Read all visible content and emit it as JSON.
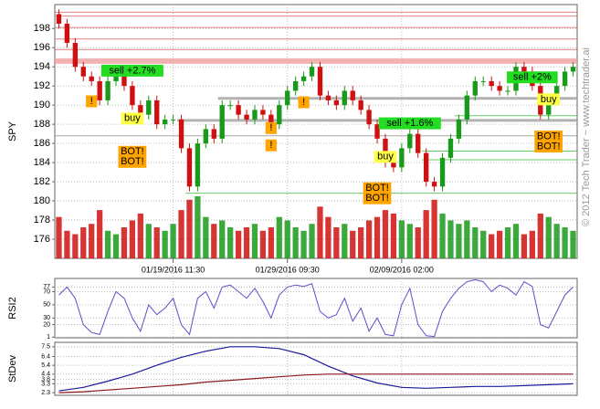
{
  "chart_data": [
    {
      "type": "candlestick",
      "ylabel": "SPY",
      "categories": [
        null,
        null,
        null,
        null,
        null,
        null,
        null,
        null,
        null,
        null,
        null,
        null,
        null,
        null,
        "01/19/2016 11:30",
        null,
        null,
        null,
        null,
        null,
        null,
        null,
        null,
        null,
        null,
        null,
        null,
        null,
        "01/29/2016 09:30",
        null,
        null,
        null,
        null,
        null,
        null,
        null,
        null,
        null,
        null,
        null,
        null,
        null,
        "02/09/2016 02:00",
        null,
        null,
        null,
        null,
        null,
        null,
        null,
        null,
        null,
        null,
        null,
        null,
        null,
        null,
        null,
        null,
        null,
        null,
        null,
        null,
        null
      ],
      "open": [
        199.5,
        198.5,
        196.5,
        194,
        193,
        192.5,
        190.5,
        192.5,
        193.5,
        192,
        190,
        189,
        190.5,
        188,
        188.5,
        188.5,
        185.5,
        181.5,
        186,
        187.5,
        186.5,
        190,
        190,
        189,
        188.5,
        189.5,
        189,
        188,
        190,
        191.5,
        192.5,
        193,
        194,
        191,
        190.5,
        190,
        191.5,
        190.5,
        189.5,
        188,
        186.5,
        184,
        183.5,
        185.5,
        187,
        185,
        182,
        181.5,
        184.5,
        186.5,
        188.5,
        191,
        192.5,
        192.5,
        192,
        191.5,
        191.5,
        194,
        193.5,
        192,
        189,
        190.5,
        192,
        193.5
      ],
      "high": [
        200,
        199,
        197,
        194.5,
        193.5,
        193,
        193,
        194,
        194,
        192.5,
        190.5,
        191,
        191,
        189,
        189,
        189,
        186,
        186.5,
        188,
        188,
        190.5,
        190.5,
        190.5,
        189.5,
        190,
        190,
        189.5,
        190.5,
        192,
        193,
        193.5,
        194.5,
        194.5,
        191.5,
        191,
        192,
        192,
        191,
        190,
        188.5,
        187,
        184.5,
        186,
        187.5,
        187.5,
        185.5,
        182.5,
        185,
        187,
        189,
        191.5,
        193,
        193,
        193,
        192.5,
        192,
        194.5,
        194.5,
        194,
        192.5,
        191,
        192.5,
        194,
        194.5
      ],
      "low": [
        198,
        196,
        193.5,
        192.5,
        192,
        190,
        190,
        192,
        191.5,
        189.5,
        188.5,
        188.5,
        187.5,
        187.5,
        188,
        185,
        181,
        181,
        185.5,
        186,
        186,
        189.5,
        188.5,
        188,
        188,
        188.5,
        187.5,
        187.5,
        189.5,
        191,
        192,
        192.5,
        190.5,
        190,
        189.5,
        189.5,
        190,
        189,
        187.5,
        186,
        183.5,
        183,
        183,
        185,
        184.5,
        181.5,
        181,
        181,
        184,
        186,
        188,
        190.5,
        192,
        191.5,
        191,
        191,
        191,
        193,
        191.5,
        188.5,
        188.5,
        190,
        191.5,
        193
      ],
      "close": [
        198.5,
        196.5,
        194,
        193,
        192.5,
        190.5,
        192.5,
        193.5,
        192,
        190,
        189,
        190.5,
        188,
        188.5,
        188.5,
        185.5,
        181.5,
        186,
        187.5,
        186.5,
        190,
        190,
        189,
        188.5,
        189.5,
        189,
        188,
        190,
        191.5,
        192.5,
        193,
        194,
        191,
        190.5,
        190,
        191.5,
        190.5,
        189.5,
        188,
        186.5,
        184,
        183.5,
        185.5,
        187,
        185,
        182,
        181.5,
        184.5,
        186.5,
        188.5,
        191,
        192.5,
        192.5,
        192,
        191.5,
        191.5,
        194,
        193.5,
        192,
        189,
        190.5,
        192,
        193.5,
        194
      ],
      "volume": [
        60,
        40,
        35,
        45,
        50,
        70,
        40,
        35,
        45,
        55,
        65,
        50,
        45,
        40,
        50,
        70,
        85,
        90,
        60,
        50,
        55,
        45,
        40,
        45,
        50,
        40,
        45,
        60,
        55,
        45,
        40,
        50,
        75,
        60,
        45,
        50,
        40,
        45,
        55,
        60,
        70,
        65,
        55,
        50,
        45,
        70,
        85,
        65,
        55,
        50,
        55,
        45,
        40,
        35,
        40,
        45,
        50,
        35,
        40,
        65,
        60,
        50,
        45,
        40
      ],
      "up_color": "#1a9a1a",
      "down_color": "#d01010",
      "ylim": [
        174,
        200.5
      ],
      "yticks": [
        176,
        178,
        180,
        182,
        184,
        186,
        188,
        190,
        192,
        194,
        196,
        198
      ],
      "grid": true,
      "levels": [
        {
          "price": 199.7,
          "start": 0,
          "color": "#e06060",
          "width": 1
        },
        {
          "price": 199.3,
          "start": 0,
          "color": "#e06060",
          "width": 1
        },
        {
          "price": 198.1,
          "start": 0,
          "color": "#e06060",
          "width": 1
        },
        {
          "price": 196.9,
          "start": 0,
          "color": "#e06060",
          "width": 1
        },
        {
          "price": 195.8,
          "start": 0,
          "color": "#e06060",
          "width": 1
        },
        {
          "price": 194.6,
          "start": 0,
          "color": "#f0a0a0",
          "width": 6
        },
        {
          "price": 190.7,
          "start": 20,
          "color": "#a0a0a0",
          "width": 3
        },
        {
          "price": 188.9,
          "start": 49,
          "color": "#40c040",
          "width": 1
        },
        {
          "price": 188.4,
          "start": 15,
          "color": "#a0a0a0",
          "width": 3
        },
        {
          "price": 186.8,
          "start": 0,
          "color": "#909090",
          "width": 1
        },
        {
          "price": 185.2,
          "start": 45,
          "color": "#40c040",
          "width": 1
        },
        {
          "price": 184.3,
          "start": 45,
          "color": "#40c040",
          "width": 1
        },
        {
          "price": 180.8,
          "start": 16,
          "color": "#40c040",
          "width": 1
        }
      ],
      "annotations": [
        {
          "lines": [
            "sell +2.7%"
          ],
          "index": 9,
          "price": 193.6,
          "color": "#22dd22"
        },
        {
          "lines": [
            "buy"
          ],
          "index": 9,
          "price": 188.6,
          "color": "#ffff44"
        },
        {
          "lines": [
            "BOT!",
            "BOT!"
          ],
          "index": 9,
          "price": 184.6,
          "color": "#ffa500"
        },
        {
          "lines": [
            "!"
          ],
          "index": 4,
          "price": 190.4,
          "color": "#ffa500"
        },
        {
          "lines": [
            "!"
          ],
          "index": 26,
          "price": 187.6,
          "color": "#ffa500"
        },
        {
          "lines": [
            "!"
          ],
          "index": 26,
          "price": 185.8,
          "color": "#ffa500"
        },
        {
          "lines": [
            "!"
          ],
          "index": 30,
          "price": 190.3,
          "color": "#ffa500"
        },
        {
          "lines": [
            "sell +1.6%"
          ],
          "index": 43,
          "price": 188.1,
          "color": "#22dd22"
        },
        {
          "lines": [
            "buy"
          ],
          "index": 40,
          "price": 184.6,
          "color": "#ffff44"
        },
        {
          "lines": [
            "BOT!",
            "BOT!"
          ],
          "index": 39,
          "price": 180.8,
          "color": "#ffa500"
        },
        {
          "lines": [
            "sell +2%"
          ],
          "index": 58,
          "price": 192.9,
          "color": "#22dd22"
        },
        {
          "lines": [
            "buy"
          ],
          "index": 60,
          "price": 190.6,
          "color": "#ffff44"
        },
        {
          "lines": [
            "BOT!",
            "BOT!"
          ],
          "index": 60,
          "price": 186.2,
          "color": "#ffa500"
        }
      ],
      "watermark": "© 2012 Tech Trader ~ www.techtrader.ai"
    },
    {
      "type": "line",
      "ylabel": "RSI2",
      "color": "#5a4fc8",
      "values": [
        65,
        77,
        60,
        20,
        8,
        5,
        40,
        70,
        60,
        30,
        10,
        50,
        35,
        45,
        60,
        20,
        5,
        60,
        70,
        45,
        77,
        80,
        70,
        60,
        75,
        55,
        30,
        65,
        77,
        80,
        78,
        82,
        40,
        30,
        35,
        60,
        25,
        45,
        10,
        30,
        5,
        3,
        50,
        75,
        20,
        3,
        2,
        40,
        60,
        75,
        85,
        88,
        85,
        70,
        80,
        75,
        65,
        85,
        78,
        20,
        15,
        40,
        65,
        77
      ],
      "ylim": [
        0,
        90
      ],
      "yticks": [
        1,
        20,
        30,
        50,
        70,
        77
      ],
      "grid": true
    },
    {
      "type": "line",
      "ylabel": "StDev",
      "x": [
        0,
        3,
        6,
        9,
        12,
        15,
        18,
        21,
        24,
        27,
        30,
        33,
        36,
        39,
        42,
        45,
        48,
        51,
        54,
        57,
        60,
        63
      ],
      "series": [
        {
          "color": "#1a1a9a",
          "values": [
            2.5,
            2.9,
            3.6,
            4.4,
            5.4,
            6.3,
            7.0,
            7.5,
            7.5,
            7.3,
            6.6,
            5.3,
            4.2,
            3.4,
            2.9,
            2.8,
            2.9,
            3.0,
            3.0,
            3.1,
            3.2,
            3.3
          ]
        },
        {
          "color": "#8b1a1a",
          "values": [
            2.3,
            2.4,
            2.6,
            2.8,
            3.0,
            3.2,
            3.5,
            3.7,
            3.9,
            4.1,
            4.3,
            4.4,
            4.4,
            4.4,
            4.4,
            4.4,
            4.4,
            4.4,
            4.4,
            4.4,
            4.4,
            4.4
          ]
        }
      ],
      "ylim": [
        2,
        8
      ],
      "yticks": [
        2.3,
        3.3,
        3.8,
        4.4,
        5.4,
        6.4,
        7.5
      ],
      "grid": true
    }
  ]
}
